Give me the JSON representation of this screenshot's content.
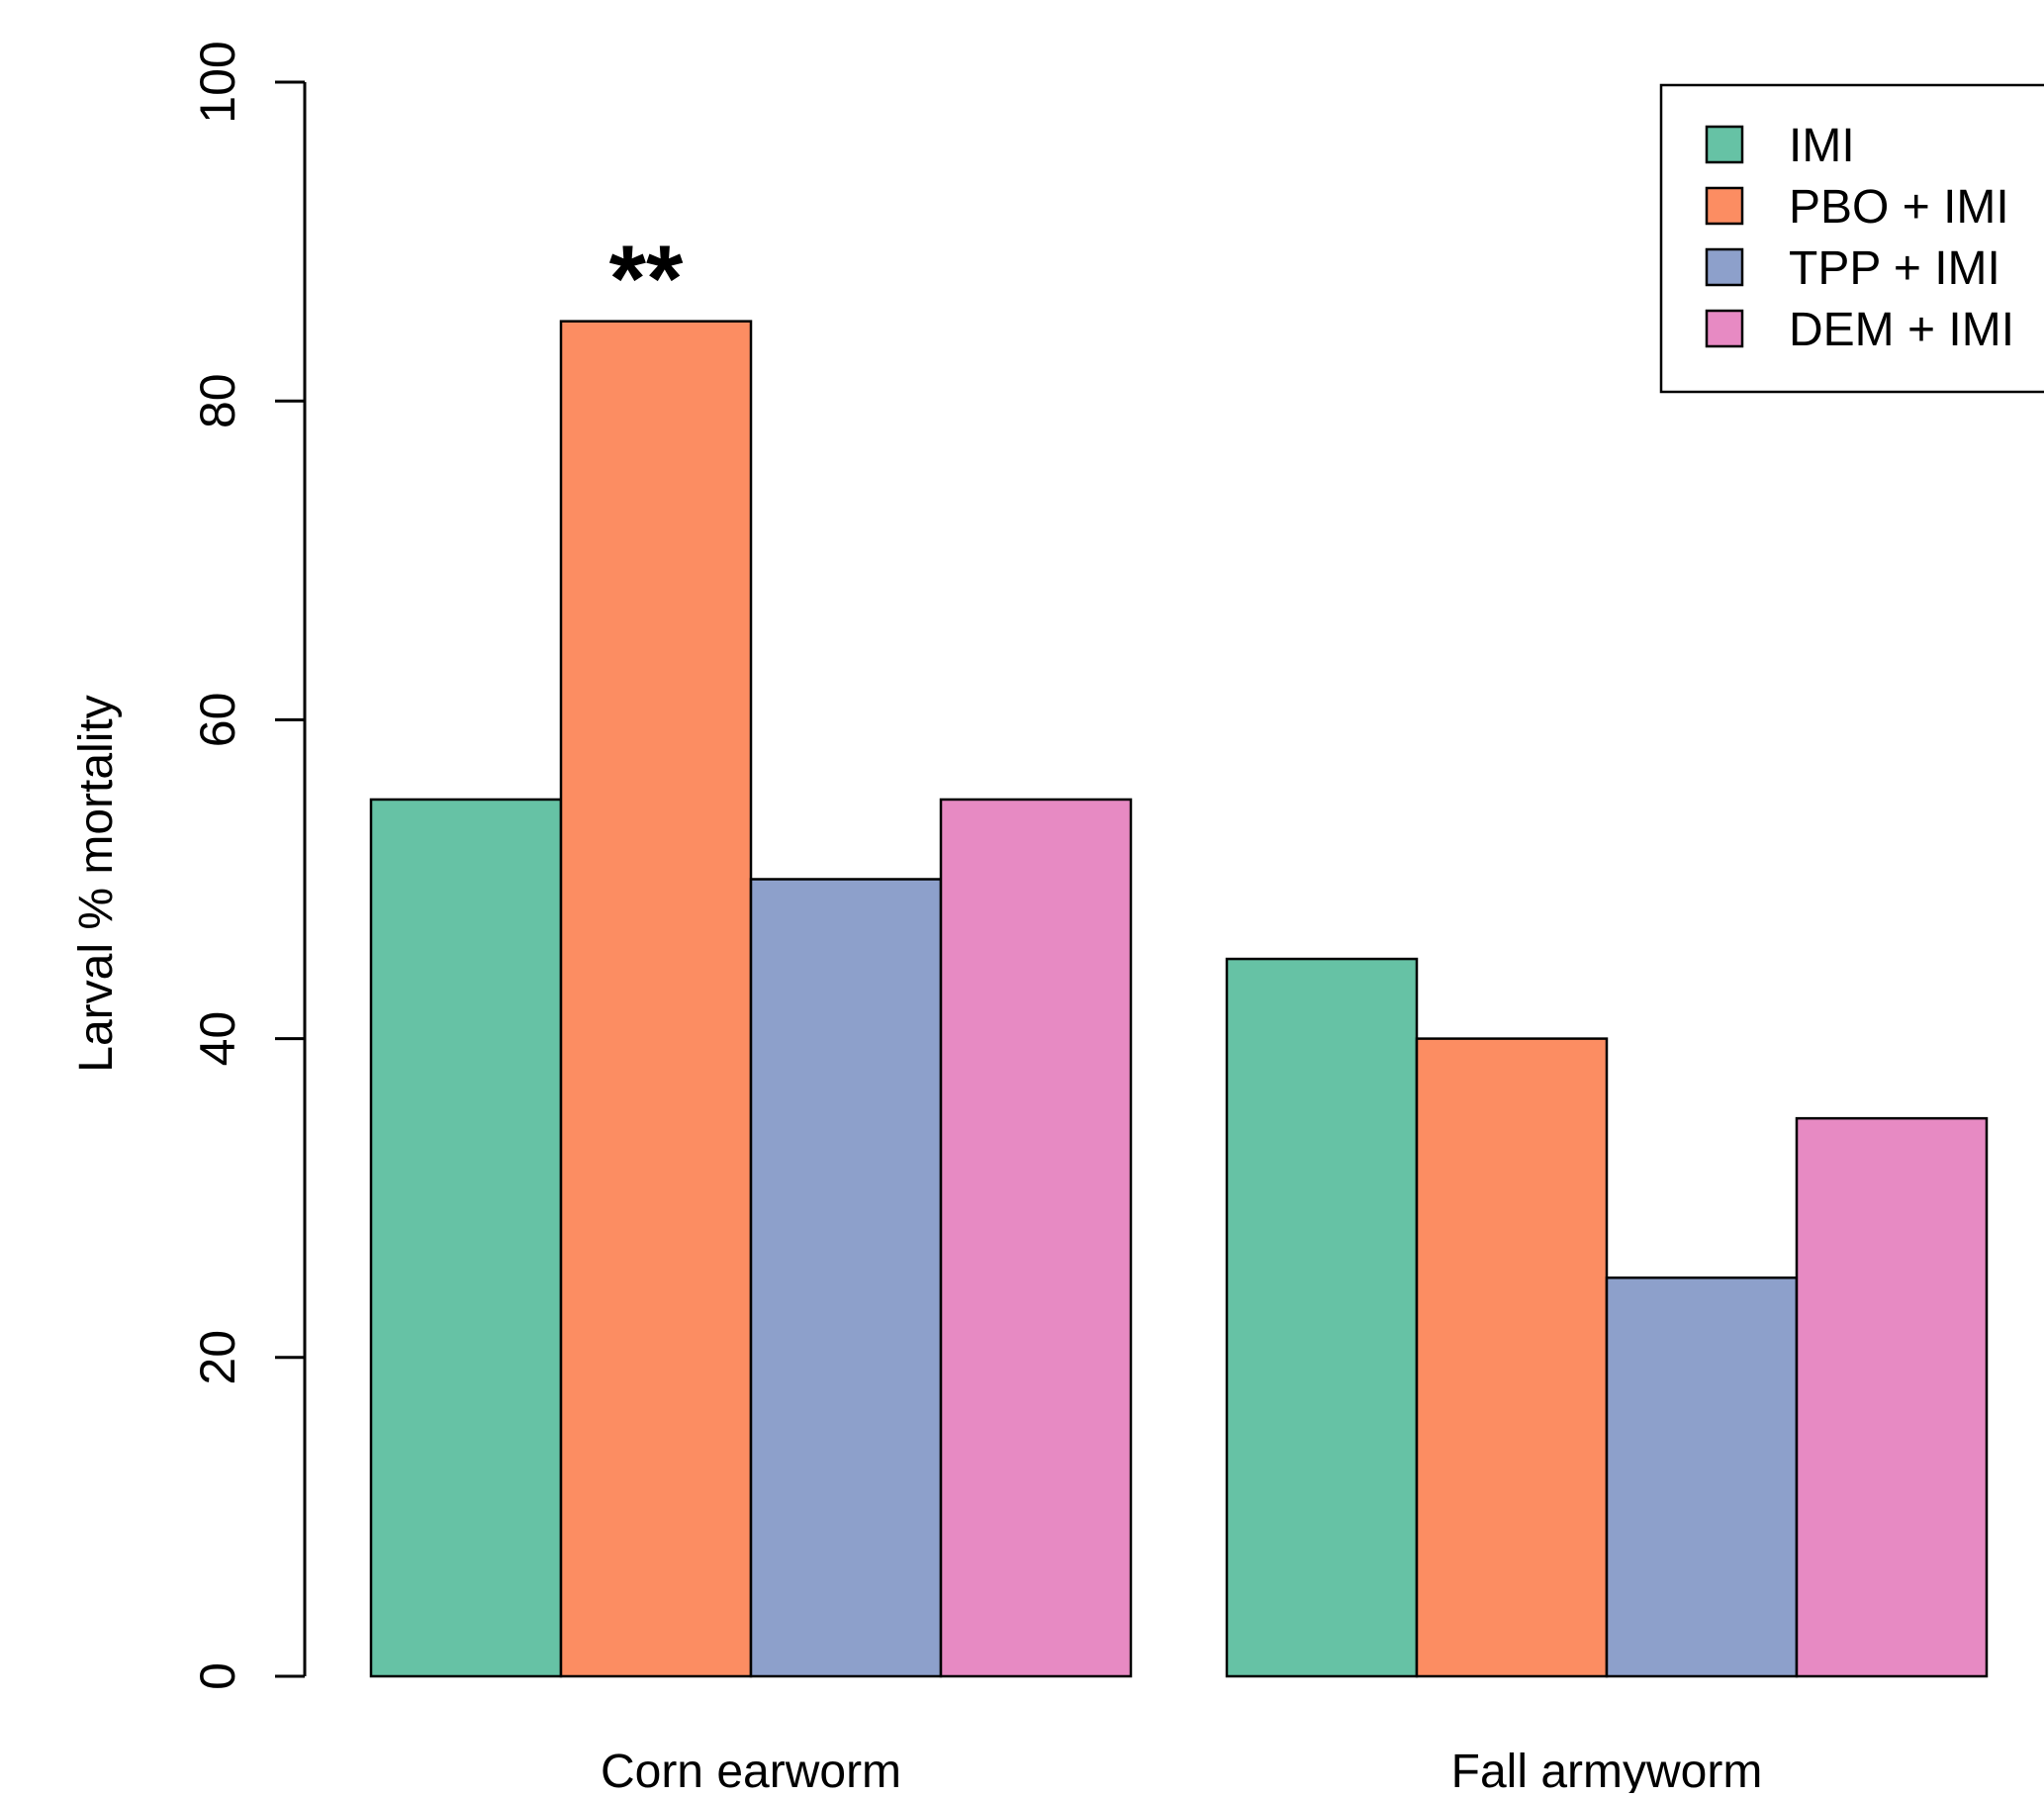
{
  "chart_data": {
    "type": "bar",
    "title": "",
    "xlabel": "",
    "ylabel": "Larval % mortality",
    "ylim": [
      0,
      100
    ],
    "yticks": [
      0,
      20,
      40,
      60,
      80,
      100
    ],
    "grid": false,
    "legend_position": "top-right",
    "categories": [
      "Corn earworm",
      "Fall armyworm"
    ],
    "series": [
      {
        "name": "IMI",
        "color": "#66c2a5",
        "values": [
          55,
          45
        ]
      },
      {
        "name": "PBO + IMI",
        "color": "#fc8d62",
        "values": [
          85,
          40
        ]
      },
      {
        "name": "TPP + IMI",
        "color": "#8da0cb",
        "values": [
          50,
          25
        ]
      },
      {
        "name": "DEM + IMI",
        "color": "#e78ac3",
        "values": [
          55,
          35
        ]
      }
    ],
    "annotations": [
      {
        "text": "**",
        "category": "Corn earworm",
        "series": "PBO + IMI"
      }
    ]
  }
}
